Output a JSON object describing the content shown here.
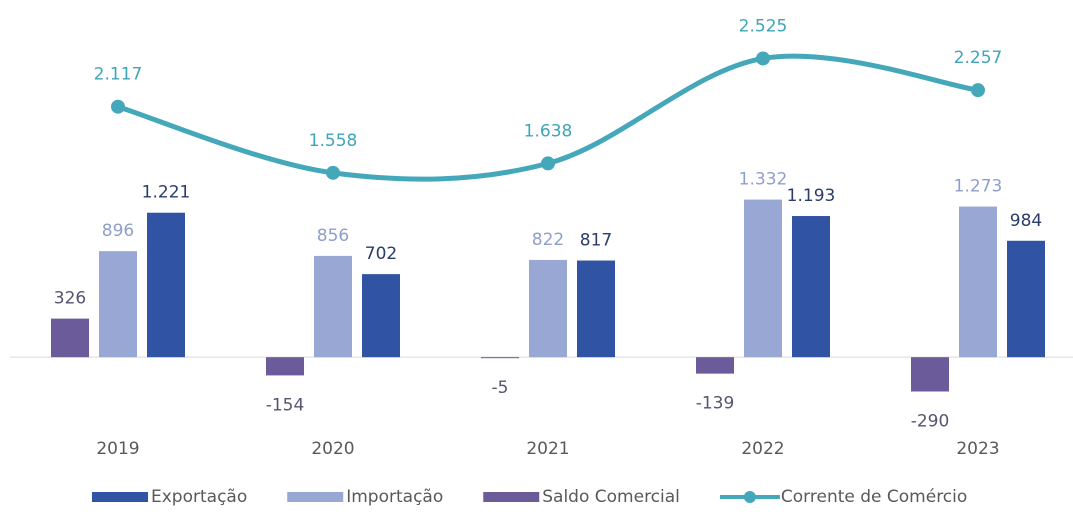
{
  "chart_data": {
    "type": "bar",
    "categories": [
      "2019",
      "2020",
      "2021",
      "2022",
      "2023"
    ],
    "series": [
      {
        "name": "Saldo Comercial",
        "color": "#6b5b9a",
        "label_color": "#5a5270",
        "values": [
          326,
          -154,
          -5,
          -139,
          -290
        ]
      },
      {
        "name": "Importação",
        "color": "#98a7d4",
        "label_color": "#8e9fcb",
        "values": [
          896,
          856,
          822,
          1332,
          1273
        ]
      },
      {
        "name": "Exportação",
        "color": "#3054a3",
        "label_color": "#2b3c6b",
        "values": [
          1221,
          702,
          817,
          1193,
          984
        ]
      },
      {
        "name": "Corrente de Comércio",
        "type": "line",
        "color": "#45a8ba",
        "label_color": "#3ea5b8",
        "values": [
          2117,
          1558,
          1638,
          2525,
          2257
        ]
      }
    ],
    "value_labels": [
      [
        "326",
        "-154",
        "-5",
        "-139",
        "-290"
      ],
      [
        "896",
        "856",
        "822",
        "1.332",
        "1.273"
      ],
      [
        "1.221",
        "702",
        "817",
        "1.193",
        "984"
      ],
      [
        "2.117",
        "1.558",
        "1.638",
        "2.525",
        "2.257"
      ]
    ],
    "legend_order": [
      2,
      1,
      0,
      3
    ],
    "ylim": [
      -700,
      2850
    ],
    "legend": "bottom"
  }
}
